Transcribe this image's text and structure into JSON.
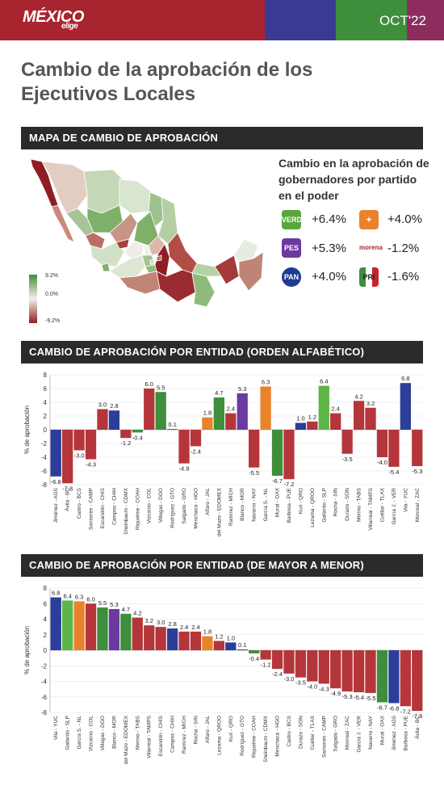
{
  "header": {
    "logo_main": "MÉXICO",
    "logo_sub": "elige",
    "date": "OCT'22"
  },
  "title": "Cambio de la aprobación de los Ejecutivos Locales",
  "sections": {
    "map": "MAPA DE CAMBIO DE APROBACIÓN",
    "alpha": "CAMBIO DE APROBACIÓN POR ENTIDAD (ORDEN ALFABÉTICO)",
    "sorted": "CAMBIO DE APROBACIÓN POR ENTIDAD (DE MAYOR A MENOR)"
  },
  "map_legend": {
    "top": "9.2%",
    "mid": "0.0%",
    "bottom": "-9.2%"
  },
  "party_legend": {
    "title": "Cambio en la aprobación de gobernadores por partido en el poder",
    "parties": [
      {
        "icon": "verde-logo-icon",
        "label": "VERDE",
        "value": "+6.4%",
        "color": "#5aa63c"
      },
      {
        "icon": "pt-logo-icon",
        "label": "",
        "value": "+4.0%",
        "color": "#e8832c"
      },
      {
        "icon": "pes-logo-icon",
        "label": "PES",
        "value": "+5.3%",
        "color": "#6b3aa0"
      },
      {
        "icon": "morena-logo-icon",
        "label": "morena",
        "value": "-1.2%",
        "color": "#a8242f"
      },
      {
        "icon": "pan-logo-icon",
        "label": "PAN",
        "value": "+4.0%",
        "color": "#1f3b94"
      },
      {
        "icon": "pri-logo-icon",
        "label": "PRI",
        "value": "-1.6%",
        "color": "#3e8e3b"
      }
    ]
  },
  "colors": {
    "morena": "#b5363a",
    "pan": "#2a3e9a",
    "pri": "#3e8e3b",
    "verde": "#5db548",
    "mc": "#e8832c",
    "pes": "#6b3aa0"
  },
  "chart_data": [
    {
      "type": "bar",
      "ylabel": "% de aprobación",
      "ylim": [
        -8,
        8
      ],
      "yticks": [
        -8,
        -6,
        -4,
        -2,
        0,
        2,
        4,
        6,
        8
      ],
      "categories": [
        "Jiménez - AGS",
        "Ávila - BC",
        "Castro - BCS",
        "Sansores - CAMP",
        "Escandón - CHIS",
        "Campos - CHIH",
        "Sheinbaum - CDMX",
        "Riquelme - COAH",
        "Vizcaíno - COL",
        "Villegas - DGO",
        "Rodríguez - GTO",
        "Salgado - GRO",
        "Menchaca - HGO",
        "Alfaro - JAL",
        "del Mazo - EDOMEX",
        "Ramírez - MICH",
        "Blanco - MOR",
        "Navarro - NAY",
        "García S. - NL",
        "Murat - OAX",
        "Barbosa - PUE",
        "Kuri - QRO",
        "Lezama - QROO",
        "Gallardo - SLP",
        "Rocha - SIN",
        "Durazo - SON",
        "Merino - TABS",
        "Villarreal - TAMPS",
        "Cuéllar - TLAX",
        "García J. - VER",
        "Vila - YUC",
        "Monreal - ZAC"
      ],
      "values": [
        -6.8,
        -7.8,
        -3.0,
        -4.3,
        3.0,
        2.8,
        -1.2,
        -0.4,
        6.0,
        5.5,
        0.1,
        -4.9,
        -2.4,
        1.8,
        4.7,
        2.4,
        5.3,
        -5.5,
        6.3,
        -6.7,
        -7.2,
        1.0,
        1.2,
        6.4,
        2.4,
        -3.5,
        4.2,
        3.2,
        -4.0,
        -5.4,
        6.8,
        -5.3
      ],
      "party": [
        "pan",
        "morena",
        "morena",
        "morena",
        "morena",
        "pan",
        "morena",
        "pri",
        "morena",
        "pri",
        "pan",
        "morena",
        "morena",
        "mc",
        "pri",
        "morena",
        "pes",
        "morena",
        "mc",
        "pri",
        "morena",
        "pan",
        "morena",
        "verde",
        "morena",
        "morena",
        "morena",
        "morena",
        "morena",
        "morena",
        "pan",
        "morena"
      ]
    },
    {
      "type": "bar",
      "ylabel": "% de aprobación",
      "ylim": [
        -8,
        8
      ],
      "yticks": [
        -8,
        -6,
        -4,
        -2,
        0,
        2,
        4,
        6,
        8
      ],
      "categories": [
        "Vila - YUC",
        "Gallardo - SLP",
        "García S. - NL",
        "Vizcaíno - COL",
        "Villegas - DGO",
        "Blanco - MOR",
        "del Mazo - EDOMEX",
        "Merino - TABS",
        "Villarreal - TAMPS",
        "Escandón - CHIS",
        "Campos - CHIH",
        "Ramírez - MICH",
        "Rocha - SIN",
        "Alfaro - JAL",
        "Lezama - QROO",
        "Kuri - QRO",
        "Rodríguez - GTO",
        "Riquelme - COAH",
        "Sheinbaum - CDMX",
        "Menchaca - HGO",
        "Castro - BCS",
        "Durazo - SON",
        "Cuéllar - TLAX",
        "Sansores - CAMP",
        "Salgado - GRO",
        "Monreal - ZAC",
        "García J. - VER",
        "Navarro - NAY",
        "Murat - OAX",
        "Jiménez - AGS",
        "Barbosa - PUE",
        "Ávila - BC"
      ],
      "values": [
        6.8,
        6.4,
        6.3,
        6.0,
        5.5,
        5.3,
        4.7,
        4.2,
        3.2,
        3.0,
        2.8,
        2.4,
        2.4,
        1.8,
        1.2,
        1.0,
        0.1,
        -0.4,
        -1.2,
        -2.4,
        -3.0,
        -3.5,
        -4.0,
        -4.3,
        -4.9,
        -5.3,
        -5.4,
        -5.5,
        -6.7,
        -6.8,
        -7.2,
        -7.8
      ],
      "party": [
        "pan",
        "verde",
        "mc",
        "morena",
        "pri",
        "pes",
        "pri",
        "morena",
        "morena",
        "morena",
        "pan",
        "morena",
        "morena",
        "mc",
        "morena",
        "pan",
        "pan",
        "pri",
        "morena",
        "morena",
        "morena",
        "morena",
        "morena",
        "morena",
        "morena",
        "morena",
        "morena",
        "morena",
        "pri",
        "pan",
        "morena",
        "morena"
      ]
    }
  ]
}
